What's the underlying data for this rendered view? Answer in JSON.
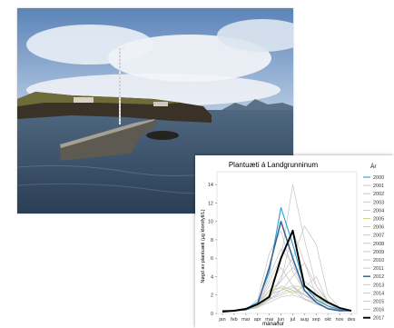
{
  "colors": {
    "sky_top": "#5c84b8",
    "sky_mid": "#b9cde4",
    "sea": "#2a3e55",
    "rock": "#3a3226",
    "grass": "#6f6a3a",
    "highlight_blue": "#2a9fd6",
    "highlight_navy": "#3a5f8f",
    "highlight_yellow": "#c9d47a",
    "other_years": "#bdbdbd",
    "black": "#000000"
  },
  "chart_data": {
    "type": "line",
    "title": "Plantuæti á Landgrunninum",
    "xlabel": "mánaður",
    "ylabel": "Nøgd av plantuæti (µg klorofyll/L)",
    "ylim": [
      0,
      15
    ],
    "yticks": [
      "0",
      "2",
      "4",
      "6",
      "8",
      "10",
      "12",
      "14"
    ],
    "categories": [
      "jan",
      "feb",
      "mar",
      "apr",
      "mai",
      "jun",
      "jul",
      "aug",
      "sep",
      "okt",
      "nov",
      "des"
    ],
    "legend_title": "Ár",
    "legend_position": "right",
    "series": [
      {
        "name": "2000",
        "color": "#2a9fd6",
        "width": 1.1,
        "values": [
          0.3,
          0.3,
          0.5,
          1.2,
          4.5,
          11.5,
          7.5,
          3.0,
          1.5,
          0.8,
          0.4,
          0.3
        ]
      },
      {
        "name": "2001",
        "color": "#c4c4c4",
        "width": 0.7,
        "values": [
          0.3,
          0.3,
          0.4,
          0.9,
          2.0,
          3.5,
          9.0,
          5.5,
          2.0,
          1.0,
          0.5,
          0.3
        ]
      },
      {
        "name": "2002",
        "color": "#c4c4c4",
        "width": 0.7,
        "values": [
          0.3,
          0.3,
          0.4,
          1.5,
          6.5,
          9.0,
          4.5,
          2.5,
          1.8,
          1.0,
          0.5,
          0.3
        ]
      },
      {
        "name": "2003",
        "color": "#c4c4c4",
        "width": 0.7,
        "values": [
          0.3,
          0.3,
          0.5,
          0.8,
          3.5,
          6.0,
          14.0,
          8.0,
          3.0,
          1.2,
          0.5,
          0.3
        ]
      },
      {
        "name": "2004",
        "color": "#c4c4c4",
        "width": 0.7,
        "values": [
          0.3,
          0.3,
          0.4,
          0.7,
          1.5,
          4.0,
          6.0,
          9.5,
          7.5,
          2.0,
          0.6,
          0.3
        ]
      },
      {
        "name": "2005",
        "color": "#c9d47a",
        "width": 0.9,
        "values": [
          0.3,
          0.3,
          0.4,
          0.8,
          2.5,
          2.8,
          2.2,
          3.0,
          1.8,
          0.8,
          0.4,
          0.3
        ]
      },
      {
        "name": "2006",
        "color": "#c4c4c4",
        "width": 0.7,
        "values": [
          0.3,
          0.3,
          0.4,
          1.0,
          3.0,
          5.0,
          3.0,
          1.6,
          1.0,
          0.6,
          0.4,
          0.3
        ]
      },
      {
        "name": "2007",
        "color": "#c4c4c4",
        "width": 0.7,
        "values": [
          0.3,
          0.3,
          0.5,
          1.1,
          2.5,
          3.5,
          5.0,
          3.5,
          2.5,
          1.0,
          0.4,
          0.3
        ]
      },
      {
        "name": "2008",
        "color": "#c4c4c4",
        "width": 0.7,
        "values": [
          0.3,
          0.3,
          0.4,
          0.9,
          4.0,
          7.0,
          5.5,
          2.0,
          1.2,
          0.6,
          0.4,
          0.3
        ]
      },
      {
        "name": "2009",
        "color": "#c4c4c4",
        "width": 0.7,
        "values": [
          0.3,
          0.3,
          0.4,
          0.8,
          2.0,
          2.5,
          4.0,
          5.5,
          3.0,
          1.4,
          0.5,
          0.3
        ]
      },
      {
        "name": "2010",
        "color": "#c4c4c4",
        "width": 0.7,
        "values": [
          0.3,
          0.3,
          0.4,
          0.6,
          1.5,
          2.5,
          3.0,
          2.0,
          1.2,
          0.6,
          0.4,
          0.3
        ]
      },
      {
        "name": "2011",
        "color": "#c4c4c4",
        "width": 0.7,
        "values": [
          0.3,
          0.3,
          0.4,
          0.7,
          1.8,
          3.0,
          2.5,
          1.5,
          1.0,
          0.6,
          0.4,
          0.3
        ]
      },
      {
        "name": "2012",
        "color": "#3a5f8f",
        "width": 1.5,
        "values": [
          0.3,
          0.3,
          0.4,
          1.0,
          5.0,
          10.0,
          6.0,
          2.5,
          1.2,
          0.5,
          0.3,
          0.3
        ]
      },
      {
        "name": "2013",
        "color": "#c4c4c4",
        "width": 0.7,
        "values": [
          0.3,
          0.3,
          0.4,
          0.8,
          2.0,
          2.5,
          3.0,
          2.8,
          4.0,
          1.2,
          0.5,
          0.3
        ]
      },
      {
        "name": "2014",
        "color": "#c4c4c4",
        "width": 0.7,
        "values": [
          0.3,
          0.3,
          0.4,
          0.7,
          1.5,
          2.0,
          2.5,
          2.0,
          1.6,
          0.8,
          0.4,
          0.3
        ]
      },
      {
        "name": "2015",
        "color": "#c4c4c4",
        "width": 0.7,
        "values": [
          0.3,
          0.3,
          0.4,
          0.7,
          1.2,
          1.8,
          2.0,
          1.6,
          1.2,
          0.6,
          0.4,
          0.3
        ]
      },
      {
        "name": "2016",
        "color": "#c4c4c4",
        "width": 0.7,
        "values": [
          0.3,
          0.3,
          0.4,
          0.8,
          1.6,
          2.2,
          2.8,
          2.0,
          1.4,
          0.8,
          0.4,
          0.3
        ]
      },
      {
        "name": "2017",
        "color": "#000000",
        "width": 1.9,
        "values": [
          0.2,
          0.3,
          0.5,
          1.0,
          1.8,
          6.0,
          9.0,
          3.0,
          2.0,
          1.2,
          0.6,
          0.3
        ]
      }
    ]
  }
}
